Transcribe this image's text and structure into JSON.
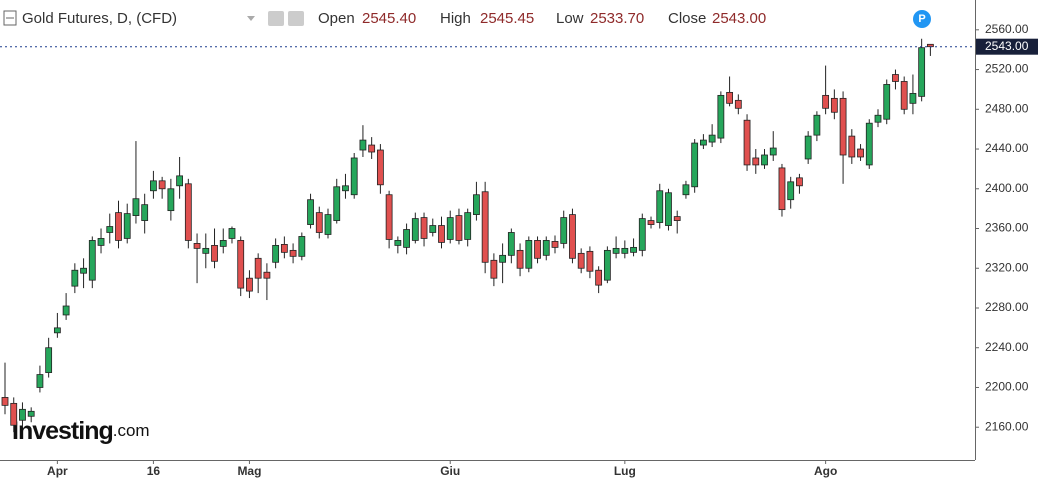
{
  "header": {
    "title": "Gold Futures, D, (CFD)",
    "open_label": "Open",
    "open": "2545.40",
    "high_label": "High",
    "high": "2545.45",
    "low_label": "Low",
    "low": "2533.70",
    "close_label": "Close",
    "close": "2543.00",
    "badge": "P"
  },
  "logo": {
    "name": "Investing",
    "suffix": ".com"
  },
  "chart_data": {
    "type": "candlestick",
    "categories": [
      null,
      null,
      null,
      null,
      null,
      null,
      "Apr",
      null,
      null,
      null,
      null,
      null,
      null,
      null,
      null,
      null,
      null,
      "16",
      null,
      null,
      null,
      null,
      null,
      null,
      null,
      null,
      null,
      null,
      "Mag",
      null,
      null,
      null,
      null,
      null,
      null,
      null,
      null,
      null,
      null,
      null,
      null,
      null,
      null,
      null,
      null,
      null,
      null,
      null,
      null,
      null,
      null,
      "Giu",
      null,
      null,
      null,
      null,
      null,
      null,
      null,
      null,
      null,
      null,
      null,
      null,
      null,
      null,
      null,
      null,
      null,
      null,
      null,
      "Lug",
      null,
      null,
      null,
      null,
      null,
      null,
      null,
      null,
      null,
      null,
      null,
      null,
      null,
      null,
      null,
      null,
      null,
      null,
      null,
      null,
      null,
      null,
      "Ago",
      null,
      null,
      null,
      null,
      null,
      null,
      null,
      null,
      null,
      null,
      null,
      null
    ],
    "open": [
      2190,
      2184,
      2167,
      2171,
      2200,
      2215,
      2255,
      2273,
      2302,
      2315,
      2308,
      2343,
      2356,
      2376,
      2350,
      2373,
      2368,
      2398,
      2408,
      2378,
      2403,
      2405,
      2345,
      2335,
      2343,
      2342,
      2350,
      2348,
      2310,
      2330,
      2316,
      2326,
      2344,
      2338,
      2332,
      2364,
      2376,
      2354,
      2368,
      2398,
      2394,
      2439,
      2444,
      2439,
      2394,
      2343,
      2341,
      2348,
      2371,
      2356,
      2363,
      2349,
      2373,
      2349,
      2374,
      2397,
      2328,
      2326,
      2333,
      2338,
      2320,
      2348,
      2333,
      2347,
      2345,
      2374,
      2335,
      2337,
      2318,
      2308,
      2335,
      2335,
      2336,
      2338,
      2368,
      2366,
      2363,
      2372,
      2394,
      2402,
      2444,
      2447,
      2451,
      2497,
      2489,
      2469,
      2431,
      2424,
      2434,
      2421,
      2389,
      2411,
      2430,
      2454,
      2494,
      2491,
      2491,
      2453,
      2440,
      2424,
      2467,
      2470,
      2515,
      2508,
      2486,
      2493,
      2545.4
    ],
    "high": [
      2225,
      2190,
      2185,
      2180,
      2222,
      2250,
      2275,
      2295,
      2325,
      2330,
      2352,
      2360,
      2375,
      2388,
      2385,
      2448,
      2395,
      2418,
      2412,
      2410,
      2432,
      2410,
      2355,
      2355,
      2360,
      2360,
      2362,
      2352,
      2318,
      2335,
      2325,
      2350,
      2352,
      2345,
      2356,
      2395,
      2382,
      2380,
      2410,
      2415,
      2436,
      2464,
      2452,
      2445,
      2398,
      2352,
      2365,
      2376,
      2376,
      2370,
      2372,
      2378,
      2380,
      2380,
      2407,
      2407,
      2335,
      2345,
      2360,
      2345,
      2352,
      2352,
      2352,
      2353,
      2378,
      2380,
      2340,
      2342,
      2322,
      2342,
      2352,
      2348,
      2350,
      2375,
      2372,
      2405,
      2400,
      2378,
      2408,
      2450,
      2455,
      2465,
      2498,
      2513,
      2495,
      2475,
      2440,
      2440,
      2458,
      2425,
      2412,
      2415,
      2458,
      2478,
      2524,
      2500,
      2498,
      2460,
      2445,
      2470,
      2480,
      2510,
      2520,
      2513,
      2515,
      2551,
      2545.45
    ],
    "low": [
      2173,
      2155,
      2160,
      2165,
      2195,
      2210,
      2250,
      2268,
      2295,
      2300,
      2300,
      2335,
      2345,
      2340,
      2345,
      2365,
      2355,
      2390,
      2390,
      2368,
      2390,
      2340,
      2305,
      2320,
      2320,
      2335,
      2345,
      2292,
      2290,
      2295,
      2288,
      2320,
      2330,
      2325,
      2328,
      2360,
      2350,
      2350,
      2365,
      2390,
      2390,
      2432,
      2430,
      2395,
      2340,
      2335,
      2334,
      2345,
      2342,
      2352,
      2340,
      2345,
      2344,
      2342,
      2368,
      2315,
      2302,
      2305,
      2325,
      2312,
      2316,
      2325,
      2328,
      2335,
      2340,
      2325,
      2315,
      2310,
      2295,
      2305,
      2330,
      2330,
      2332,
      2332,
      2360,
      2360,
      2358,
      2355,
      2390,
      2396,
      2440,
      2442,
      2446,
      2483,
      2475,
      2418,
      2415,
      2420,
      2428,
      2372,
      2380,
      2395,
      2425,
      2448,
      2475,
      2470,
      2405,
      2425,
      2428,
      2420,
      2462,
      2465,
      2500,
      2475,
      2475,
      2488,
      2533.7
    ],
    "close": [
      2182,
      2162,
      2178,
      2176,
      2213,
      2240,
      2260,
      2282,
      2318,
      2320,
      2348,
      2350,
      2362,
      2348,
      2375,
      2390,
      2384,
      2408,
      2400,
      2400,
      2413,
      2348,
      2340,
      2340,
      2327,
      2348,
      2360,
      2300,
      2297,
      2310,
      2310,
      2343,
      2336,
      2332,
      2352,
      2389,
      2356,
      2374,
      2402,
      2403,
      2431,
      2449,
      2437,
      2404,
      2349,
      2348,
      2359,
      2370,
      2350,
      2363,
      2346,
      2371,
      2348,
      2376,
      2394,
      2326,
      2310,
      2333,
      2356,
      2320,
      2348,
      2330,
      2348,
      2341,
      2371,
      2330,
      2320,
      2317,
      2303,
      2338,
      2340,
      2340,
      2341,
      2370,
      2364,
      2398,
      2396,
      2368,
      2404,
      2446,
      2449,
      2454,
      2494,
      2486,
      2481,
      2424,
      2424,
      2434,
      2441,
      2379,
      2407,
      2403,
      2453,
      2474,
      2481,
      2477,
      2434,
      2432,
      2432,
      2466,
      2474,
      2505,
      2508,
      2480,
      2496,
      2542,
      2543
    ],
    "up_color": "#26a65b",
    "down_color": "#e0504f",
    "ylim": [
      2127,
      2590
    ],
    "yticks": [
      {
        "value": 2160,
        "label": "2160.00"
      },
      {
        "value": 2200,
        "label": "2200.00"
      },
      {
        "value": 2240,
        "label": "2240.00"
      },
      {
        "value": 2280,
        "label": "2280.00"
      },
      {
        "value": 2320,
        "label": "2320.00"
      },
      {
        "value": 2360,
        "label": "2360.00"
      },
      {
        "value": 2400,
        "label": "2400.00"
      },
      {
        "value": 2440,
        "label": "2440.00"
      },
      {
        "value": 2480,
        "label": "2480.00"
      },
      {
        "value": 2520,
        "label": "2520.00"
      },
      {
        "value": 2560,
        "label": "2560.00"
      }
    ],
    "last_price": {
      "value": 2543,
      "label": "2543.00"
    },
    "grid": false
  }
}
